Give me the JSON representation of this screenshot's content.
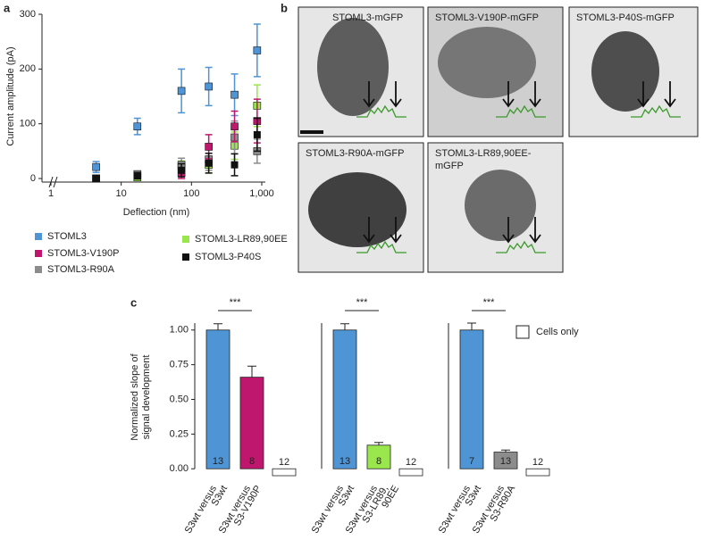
{
  "panel_labels": [
    "a",
    "b",
    "c"
  ],
  "images": {
    "labels": [
      [
        "STOML3-mGFP"
      ],
      [
        "STOML3-V190P-mGFP"
      ],
      [
        "STOML3-P40S-mGFP"
      ],
      [
        "STOML3-R90A-mGFP"
      ],
      [
        "STOML3-LR89,90EE-",
        "mGFP"
      ]
    ]
  },
  "chart_data": [
    {
      "type": "scatter",
      "xlabel": "Deflection (nm)",
      "ylabel": "Current amplitude (pA)",
      "log_x": true,
      "x": [
        4.4,
        17,
        72,
        176,
        410,
        860
      ],
      "xlim": [
        1,
        1000
      ],
      "xticks": [
        1,
        10,
        100,
        {
          "value": 1000,
          "label": "1,000"
        }
      ],
      "ylim": [
        0,
        300
      ],
      "yticks": [
        0,
        100,
        200,
        300
      ],
      "series": [
        {
          "name": "STOML3",
          "color": "#4f94d4",
          "values": [
            21,
            95,
            160,
            168,
            153,
            234
          ],
          "errors": [
            10,
            15,
            40,
            35,
            38,
            48
          ]
        },
        {
          "name": "STOML3-V190P",
          "color": "#c0176e",
          "values": [
            0,
            5,
            10,
            58,
            95,
            105
          ],
          "errors": [
            3,
            5,
            10,
            22,
            28,
            40
          ]
        },
        {
          "name": "STOML3-R90A",
          "color": "#8c8c8c",
          "values": [
            0,
            8,
            25,
            35,
            75,
            50
          ],
          "errors": [
            3,
            5,
            12,
            20,
            30,
            22
          ]
        },
        {
          "name": "STOML3-LR89,90EE",
          "color": "#99e64d",
          "values": [
            0,
            2,
            22,
            25,
            60,
            133
          ],
          "errors": [
            2,
            4,
            10,
            15,
            25,
            38
          ]
        },
        {
          "name": "STOML3-P40S",
          "color": "#111111",
          "values": [
            0,
            5,
            15,
            28,
            25,
            80
          ],
          "errors": [
            2,
            5,
            12,
            18,
            20,
            30
          ]
        }
      ]
    },
    {
      "type": "bar",
      "ylabel": [
        "Normalized slope of",
        "signal development"
      ],
      "ylim": [
        -0.05,
        1.05
      ],
      "yticks": [
        {
          "value": 0,
          "label": "0.00"
        },
        {
          "value": 0.25,
          "label": "0.25"
        },
        {
          "value": 0.5,
          "label": "0.50"
        },
        {
          "value": 0.75,
          "label": "0.75"
        },
        {
          "value": 1,
          "label": "1.00"
        }
      ],
      "legend": "Cells only",
      "legend_color": "#ffffff",
      "groups": [
        {
          "categories": [
            [
              "S3wt versus",
              "S3wt"
            ],
            [
              "S3wt versus",
              "S3-V190P"
            ],
            null
          ],
          "values": [
            1.0,
            0.66,
            -0.05
          ],
          "errors": [
            0.045,
            0.08,
            null
          ],
          "counts": [
            13,
            8,
            12
          ],
          "colors": [
            "#4f94d4",
            "#c0176e",
            "#ffffff"
          ],
          "significance": "***"
        },
        {
          "categories": [
            [
              "S3wt versus",
              "S3wt"
            ],
            [
              "S3wt versus",
              "S3-LR89,",
              "90EE"
            ],
            null
          ],
          "values": [
            1.0,
            0.17,
            -0.05
          ],
          "errors": [
            0.045,
            0.02,
            null
          ],
          "counts": [
            13,
            8,
            12
          ],
          "colors": [
            "#4f94d4",
            "#99e64d",
            "#ffffff"
          ],
          "significance": "***"
        },
        {
          "categories": [
            [
              "S3wt versus",
              "S3wt"
            ],
            [
              "S3wt versus",
              "S3-R90A"
            ],
            null
          ],
          "values": [
            1.0,
            0.12,
            -0.05
          ],
          "errors": [
            0.05,
            0.015,
            null
          ],
          "counts": [
            7,
            13,
            12
          ],
          "colors": [
            "#4f94d4",
            "#8c8c8c",
            "#ffffff"
          ],
          "significance": "***"
        }
      ]
    }
  ]
}
